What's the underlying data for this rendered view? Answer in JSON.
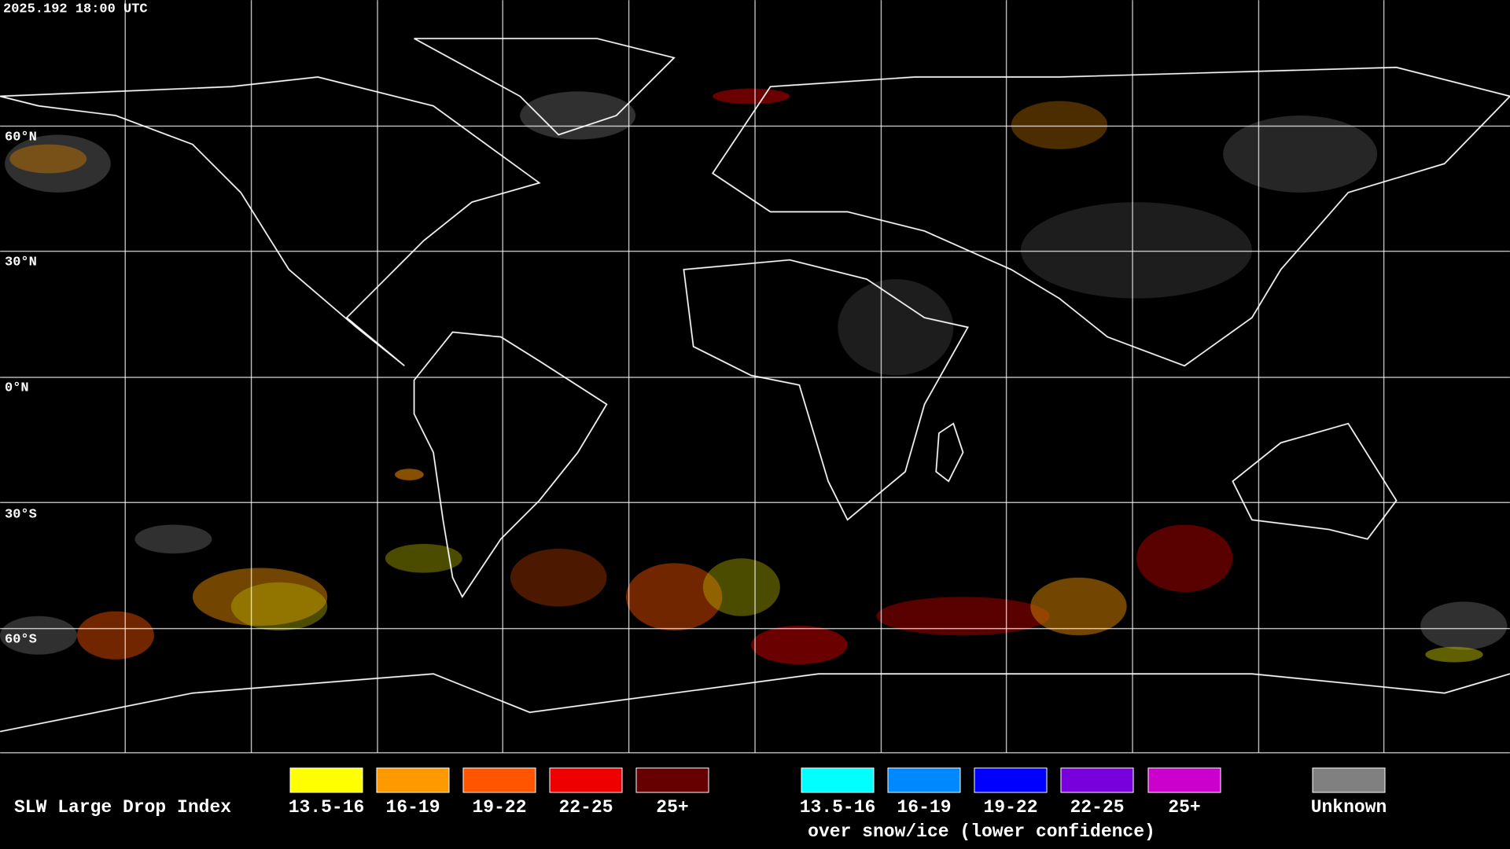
{
  "timestamp": "2025.192 18:00 UTC",
  "lat_labels": [
    "60°N",
    "30°N",
    "0°N",
    "30°S",
    "60°S"
  ],
  "legend": {
    "title": "SLW Large Drop Index",
    "items": [
      {
        "label": "13.5-16",
        "color": "#ffff00"
      },
      {
        "label": "16-19",
        "color": "#ff9900"
      },
      {
        "label": "19-22",
        "color": "#ff5500"
      },
      {
        "label": "22-25",
        "color": "#ee0000"
      },
      {
        "label": "25+",
        "color": "#660000"
      }
    ],
    "snow_items": [
      {
        "label": "13.5-16",
        "color": "#00ffff"
      },
      {
        "label": "16-19",
        "color": "#0088ff"
      },
      {
        "label": "19-22",
        "color": "#0000ff"
      },
      {
        "label": "22-25",
        "color": "#7700dd"
      },
      {
        "label": "25+",
        "color": "#cc00cc"
      }
    ],
    "snow_caption": "over snow/ice (lower confidence)",
    "unknown": {
      "label": "Unknown",
      "color": "#808080"
    }
  }
}
